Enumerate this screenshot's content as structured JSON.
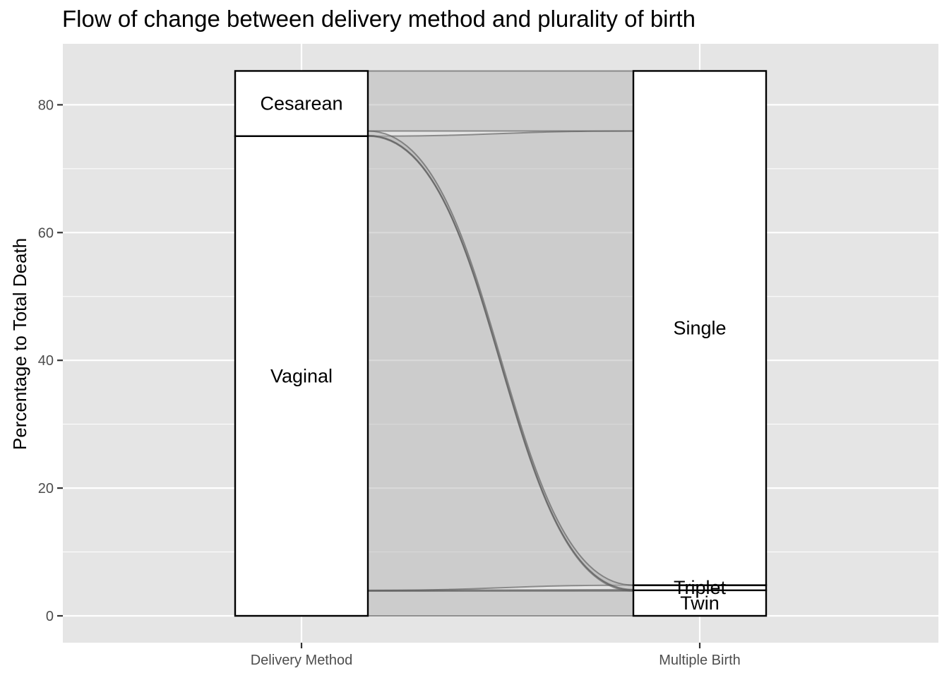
{
  "chart_data": {
    "type": "alluvial",
    "title": "Flow of change between delivery method and plurality of birth",
    "xlabel": "",
    "ylabel": "Percentage to Total Death",
    "ylim": [
      -4.2,
      89.5
    ],
    "y_ticks": [
      0,
      20,
      40,
      60,
      80
    ],
    "grid": true,
    "axes": [
      "Delivery Method",
      "Multiple Birth"
    ],
    "strata": [
      {
        "axis": "Delivery Method",
        "items": [
          {
            "label": "Vaginal",
            "value": 75.1
          },
          {
            "label": "Cesarean",
            "value": 10.2
          }
        ]
      },
      {
        "axis": "Multiple Birth",
        "items": [
          {
            "label": "Twin",
            "value": 4.0
          },
          {
            "label": "Triplet",
            "value": 0.8
          },
          {
            "label": "Single",
            "value": 80.5
          }
        ]
      }
    ],
    "flows": [
      {
        "from": "Vaginal",
        "to": "Twin",
        "value": 3.9
      },
      {
        "from": "Vaginal",
        "to": "Triplet",
        "value": 0.1
      },
      {
        "from": "Vaginal",
        "to": "Single",
        "value": 71.1
      },
      {
        "from": "Cesarean",
        "to": "Twin",
        "value": 0.1
      },
      {
        "from": "Cesarean",
        "to": "Triplet",
        "value": 0.7
      },
      {
        "from": "Cesarean",
        "to": "Single",
        "value": 9.4
      }
    ]
  }
}
